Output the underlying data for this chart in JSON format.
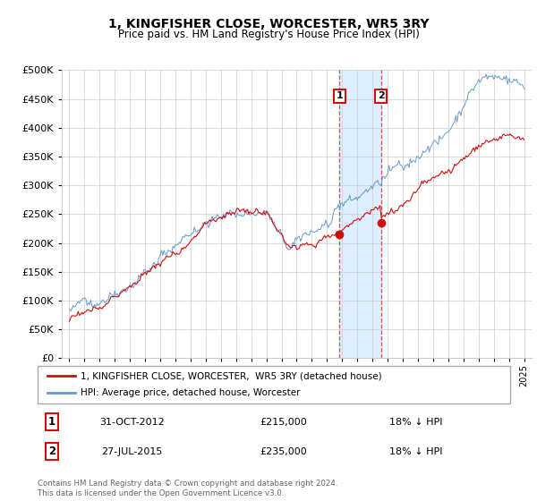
{
  "title": "1, KINGFISHER CLOSE, WORCESTER, WR5 3RY",
  "subtitle": "Price paid vs. HM Land Registry's House Price Index (HPI)",
  "legend_label_red": "1, KINGFISHER CLOSE, WORCESTER,  WR5 3RY (detached house)",
  "legend_label_blue": "HPI: Average price, detached house, Worcester",
  "footer": "Contains HM Land Registry data © Crown copyright and database right 2024.\nThis data is licensed under the Open Government Licence v3.0.",
  "sale1_date": "31-OCT-2012",
  "sale1_price": "£215,000",
  "sale1_hpi": "18% ↓ HPI",
  "sale2_date": "27-JUL-2015",
  "sale2_price": "£235,000",
  "sale2_hpi": "18% ↓ HPI",
  "sale1_x": 2012.83,
  "sale2_x": 2015.57,
  "sale1_y": 215000,
  "sale2_y": 235000,
  "ylim": [
    0,
    500000
  ],
  "xlim_start": 1994.5,
  "xlim_end": 2025.5,
  "blue_color": "#6699cc",
  "red_color": "#cc1111",
  "shade_color": "#ddeeff",
  "grid_color": "#cccccc",
  "bg_color": "#ffffff"
}
